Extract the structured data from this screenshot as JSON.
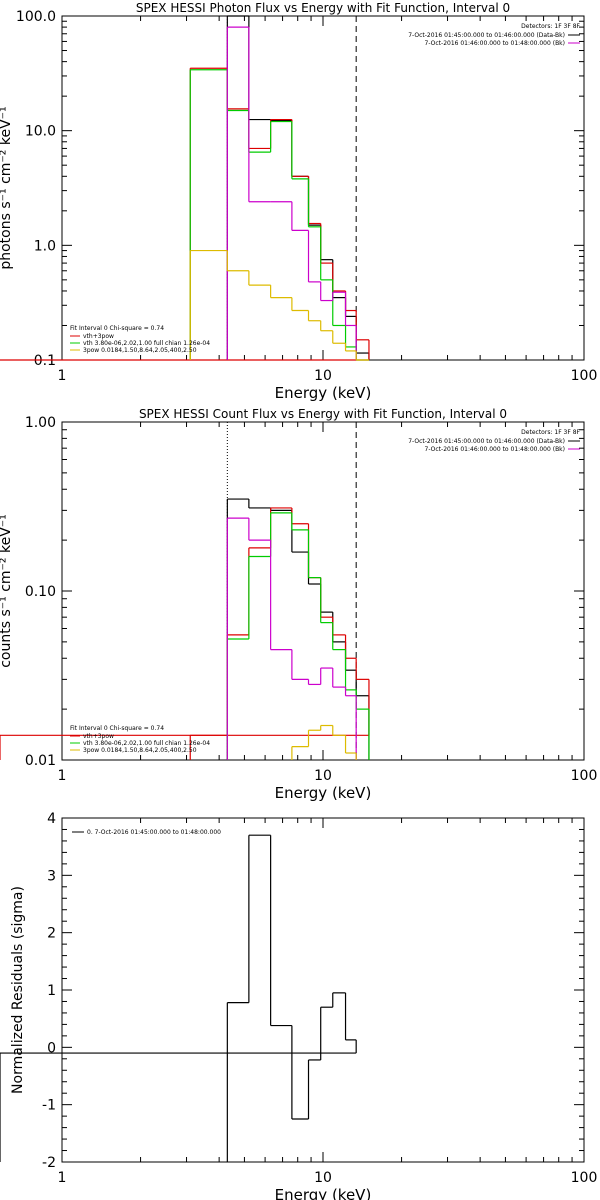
{
  "chart_data": [
    {
      "type": "line",
      "title": "SPEX HESSI Photon Flux vs Energy with Fit Function, Interval 0",
      "xlabel": "Energy (keV)",
      "ylabel": "photons s⁻¹ cm⁻² keV⁻¹",
      "xscale": "log",
      "yscale": "log",
      "xlim": [
        1,
        100
      ],
      "ylim": [
        0.1,
        100
      ],
      "xticks": [
        "1",
        "10",
        "100"
      ],
      "yticks": [
        "0.1",
        "1.0",
        "10.0",
        "100.0"
      ],
      "legend_top": {
        "header": "Detectors: 1F 3F 8F",
        "items": [
          {
            "text": "7-Oct-2016 01:45:00.000 to 01:46:00.000 (Data-Bk)",
            "color": "#000000"
          },
          {
            "text": "7-Oct-2016 01:46:00.000 to 01:48:00.000 (Bk)",
            "color": "#cc00cc"
          }
        ]
      },
      "legend_bottom": {
        "header": "Fit Interval 0   Chi-square = 0.74",
        "items": [
          {
            "text": "vth+3pow",
            "color": "#dd0000"
          },
          {
            "text": "vth 3.80e-06,2.02,1.00  full chian 1.26e-04",
            "color": "#00cc00"
          },
          {
            "text": "3pow 0.0184,1.50,8.64,2.05,400,2.50",
            "color": "#ddbb00"
          }
        ]
      },
      "vlines": [
        {
          "x": 4.3,
          "style": "dotted",
          "color": "#cc00cc"
        },
        {
          "x": 13.4,
          "style": "dashed",
          "color": "#000000"
        }
      ],
      "edges": [
        3.1,
        4.3,
        5.2,
        6.3,
        7.6,
        8.8,
        9.8,
        10.9,
        12.2,
        13.4,
        15.0
      ],
      "series": [
        {
          "color": "#000000",
          "values": [
            null,
            100,
            12.5,
            12.3,
            4.0,
            1.5,
            0.75,
            0.35,
            0.24,
            0.115,
            null
          ]
        },
        {
          "color": "#dd0000",
          "values": [
            35,
            15.5,
            7.0,
            12.5,
            4.0,
            1.55,
            0.7,
            0.4,
            0.27,
            0.15,
            0.1
          ]
        },
        {
          "color": "#00cc00",
          "values": [
            34,
            15.0,
            6.5,
            12.0,
            3.8,
            1.45,
            0.5,
            0.2,
            0.13,
            0.085,
            null
          ]
        },
        {
          "color": "#cc00cc",
          "values": [
            null,
            80,
            2.4,
            2.4,
            1.35,
            0.48,
            0.33,
            0.39,
            0.2,
            null,
            null
          ]
        },
        {
          "color": "#ddbb00",
          "values": [
            0.9,
            0.6,
            0.45,
            0.35,
            0.27,
            0.22,
            0.18,
            0.14,
            0.12,
            0.1,
            null
          ]
        }
      ]
    },
    {
      "type": "line",
      "title": "SPEX HESSI Count Flux vs Energy with Fit Function, Interval 0",
      "xlabel": "Energy (keV)",
      "ylabel": "counts s⁻¹ cm⁻² keV⁻¹",
      "xscale": "log",
      "yscale": "log",
      "xlim": [
        1,
        100
      ],
      "ylim": [
        0.01,
        1.0
      ],
      "xticks": [
        "1",
        "10",
        "100"
      ],
      "yticks": [
        "0.01",
        "0.10",
        "1.00"
      ],
      "legend_top": {
        "header": "Detectors: 1F 3F 8F",
        "items": [
          {
            "text": "7-Oct-2016 01:45:00.000 to 01:46:00.000 (Data-Bk)",
            "color": "#000000"
          },
          {
            "text": "7-Oct-2016 01:46:00.000 to 01:48:00.000 (Bk)",
            "color": "#cc00cc"
          }
        ]
      },
      "legend_bottom": {
        "header": "Fit Interval 0   Chi-square = 0.74",
        "items": [
          {
            "text": "vth+3pow",
            "color": "#dd0000"
          },
          {
            "text": "vth 3.80e-06,2.02,1.00  full chian 1.26e-04",
            "color": "#00cc00"
          },
          {
            "text": "3pow 0.0184,1.50,8.64,2.05,400,2.50",
            "color": "#ddbb00"
          }
        ]
      },
      "vlines": [
        {
          "x": 4.3,
          "style": "dotted",
          "color": "#000000"
        },
        {
          "x": 13.4,
          "style": "dashed",
          "color": "#000000"
        }
      ],
      "edges": [
        3.1,
        4.3,
        5.2,
        6.3,
        7.6,
        8.8,
        9.8,
        10.9,
        12.2,
        13.4,
        15.0
      ],
      "series": [
        {
          "color": "#000000",
          "values": [
            null,
            0.35,
            0.31,
            0.3,
            0.17,
            0.11,
            0.075,
            0.05,
            0.034,
            0.024,
            null
          ]
        },
        {
          "color": "#dd0000",
          "values": [
            0.014,
            0.055,
            0.18,
            0.31,
            0.25,
            0.12,
            0.07,
            0.055,
            0.04,
            0.03,
            0.014
          ]
        },
        {
          "color": "#00cc00",
          "values": [
            null,
            0.052,
            0.16,
            0.29,
            0.23,
            0.12,
            0.065,
            0.045,
            0.026,
            0.02,
            null
          ]
        },
        {
          "color": "#cc00cc",
          "values": [
            null,
            0.27,
            0.2,
            0.045,
            0.03,
            0.028,
            0.035,
            0.027,
            0.024,
            null,
            null
          ]
        },
        {
          "color": "#ddbb00",
          "values": [
            null,
            null,
            null,
            null,
            0.012,
            0.015,
            0.016,
            0.014,
            0.011,
            null,
            null
          ]
        }
      ]
    },
    {
      "type": "line",
      "title": "",
      "xlabel": "Energy (keV)",
      "ylabel": "Normalized Residuals (sigma)",
      "xscale": "log",
      "yscale": "linear",
      "xlim": [
        1,
        100
      ],
      "ylim": [
        -2,
        4
      ],
      "xticks": [
        "1",
        "10",
        "100"
      ],
      "yticks": [
        "-2",
        "-1",
        "0",
        "1",
        "2",
        "3",
        "4"
      ],
      "legend_top_left": {
        "items": [
          {
            "text": "0.  7-Oct-2016 01:45:00.000 to 01:48:00.000",
            "color": "#000000"
          }
        ]
      },
      "edges": [
        4.3,
        5.2,
        6.3,
        7.6,
        8.8,
        9.8,
        10.9,
        12.2,
        13.4
      ],
      "series": [
        {
          "color": "#000000",
          "values": [
            0.78,
            3.7,
            0.38,
            -1.25,
            -0.22,
            0.7,
            0.95,
            0.13,
            -0.1
          ]
        }
      ]
    }
  ]
}
